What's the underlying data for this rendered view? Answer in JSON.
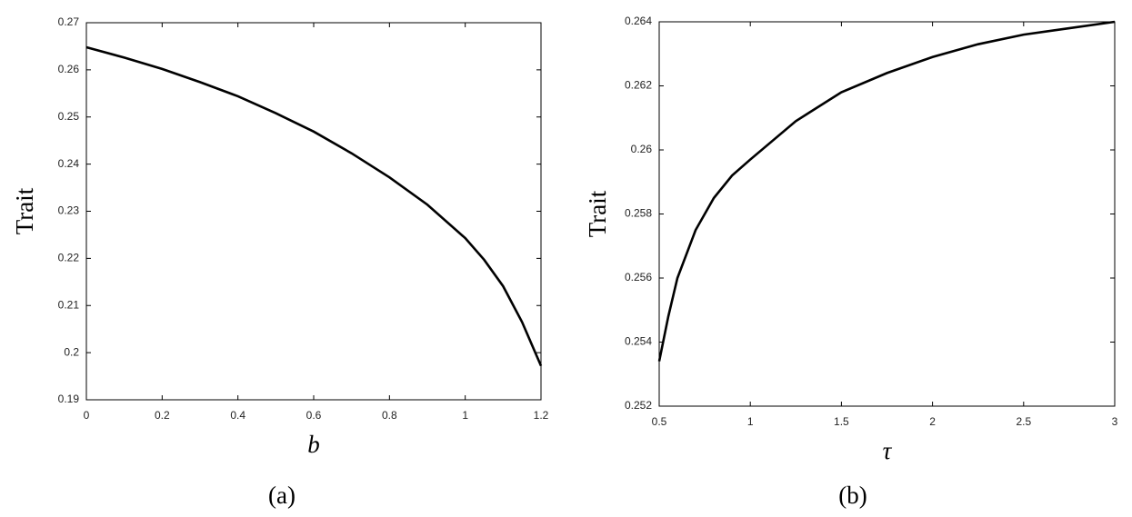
{
  "chart_data": [
    {
      "type": "line",
      "xlabel": "b",
      "ylabel": "Trait",
      "caption": "(a)",
      "x": [
        0,
        0.1,
        0.2,
        0.3,
        0.4,
        0.5,
        0.6,
        0.7,
        0.8,
        0.9,
        1.0,
        1.05,
        1.1,
        1.15,
        1.2
      ],
      "values": [
        0.2648,
        0.2626,
        0.2602,
        0.2574,
        0.2544,
        0.2508,
        0.2469,
        0.2423,
        0.2372,
        0.2314,
        0.2243,
        0.2197,
        0.2141,
        0.2065,
        0.1972
      ],
      "color": "#000000",
      "xlim": [
        0,
        1.2
      ],
      "xticks": [
        0,
        0.2,
        0.4,
        0.6,
        0.8,
        1,
        1.2
      ],
      "ylim": [
        0.19,
        0.27
      ],
      "yticks": [
        0.19,
        0.2,
        0.21,
        0.22,
        0.23,
        0.24,
        0.25,
        0.26,
        0.27
      ],
      "grid": false
    },
    {
      "type": "line",
      "xlabel": "τ",
      "ylabel": "Trait",
      "caption": "(b)",
      "x": [
        0.5,
        0.55,
        0.6,
        0.7,
        0.8,
        0.9,
        1.0,
        1.25,
        1.5,
        1.75,
        2.0,
        2.25,
        2.5,
        2.75,
        3.0
      ],
      "values": [
        0.2534,
        0.2548,
        0.256,
        0.2575,
        0.2585,
        0.2592,
        0.2597,
        0.2609,
        0.2618,
        0.2624,
        0.2629,
        0.2633,
        0.2636,
        0.2638,
        0.264
      ],
      "color": "#000000",
      "xlim": [
        0.5,
        3
      ],
      "xticks": [
        0.5,
        1,
        1.5,
        2,
        2.5,
        3
      ],
      "ylim": [
        0.252,
        0.264
      ],
      "yticks": [
        0.252,
        0.254,
        0.256,
        0.258,
        0.26,
        0.262,
        0.264
      ],
      "grid": false
    }
  ]
}
